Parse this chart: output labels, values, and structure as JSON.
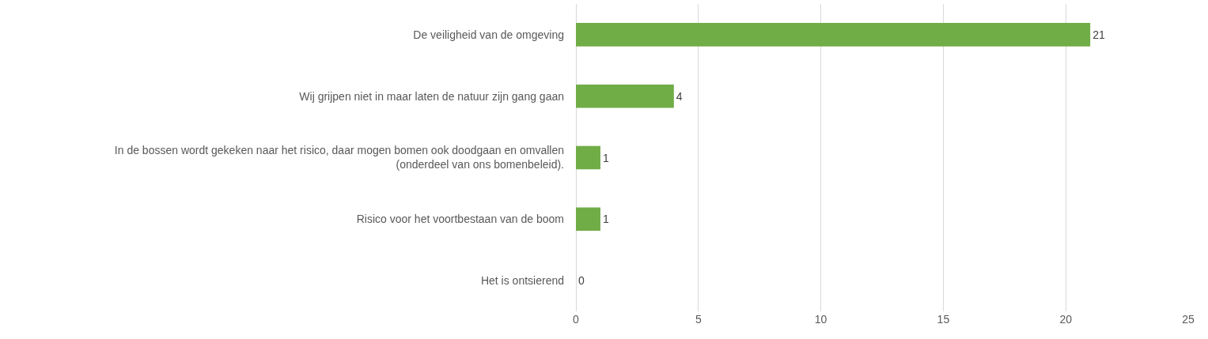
{
  "chart_data": {
    "type": "bar",
    "orientation": "horizontal",
    "categories": [
      "De veiligheid van de omgeving",
      "Wij grijpen niet in maar laten de natuur zijn gang gaan",
      "In de bossen wordt gekeken naar het risico, daar mogen bomen ook doodgaan en omvallen (onderdeel van ons bomenbeleid).",
      "Risico voor het voortbestaan van de boom",
      "Het is ontsierend"
    ],
    "values": [
      21,
      4,
      1,
      1,
      0
    ],
    "color": "#70ad47",
    "xlim": [
      0,
      25
    ],
    "xticks": [
      0,
      5,
      10,
      15,
      20,
      25
    ],
    "grid": "x",
    "data_labels": true
  }
}
